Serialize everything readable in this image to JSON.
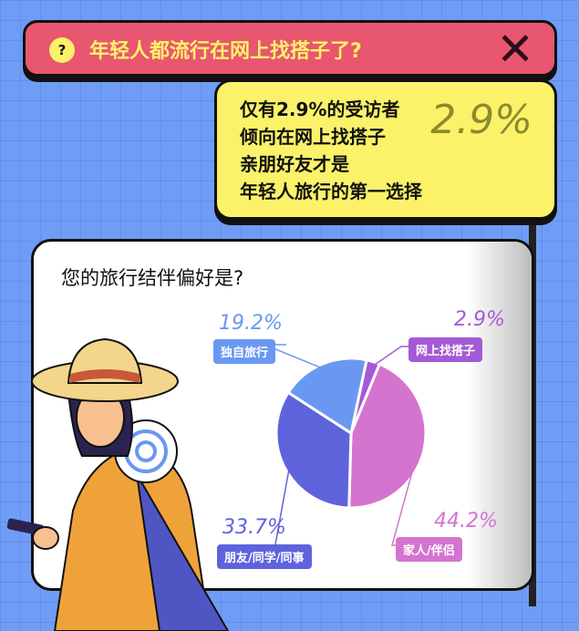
{
  "banner": {
    "title": "年轻人都流行在网上找搭子了?",
    "help_icon": "question-icon",
    "close_icon": "close-x-icon"
  },
  "callout": {
    "lines": [
      "仅有2.9%的受访者",
      "倾向在网上找搭子",
      "亲朋好友才是",
      "年轻人旅行的第一选择"
    ],
    "highlight": "2.9%"
  },
  "card": {
    "question": "您的旅行结伴偏好是?"
  },
  "chart_data": {
    "type": "pie",
    "categories": [
      "网上找搭子",
      "家人/伴侣",
      "朋友/同学/同事",
      "独自旅行"
    ],
    "values": [
      2.9,
      44.2,
      33.7,
      19.2
    ],
    "labels": [
      "2.9%",
      "44.2%",
      "33.7%",
      "19.2%"
    ],
    "colors": [
      "#a45ad6",
      "#d474cf",
      "#5e63dc",
      "#6a98f1"
    ],
    "unit": "%"
  }
}
